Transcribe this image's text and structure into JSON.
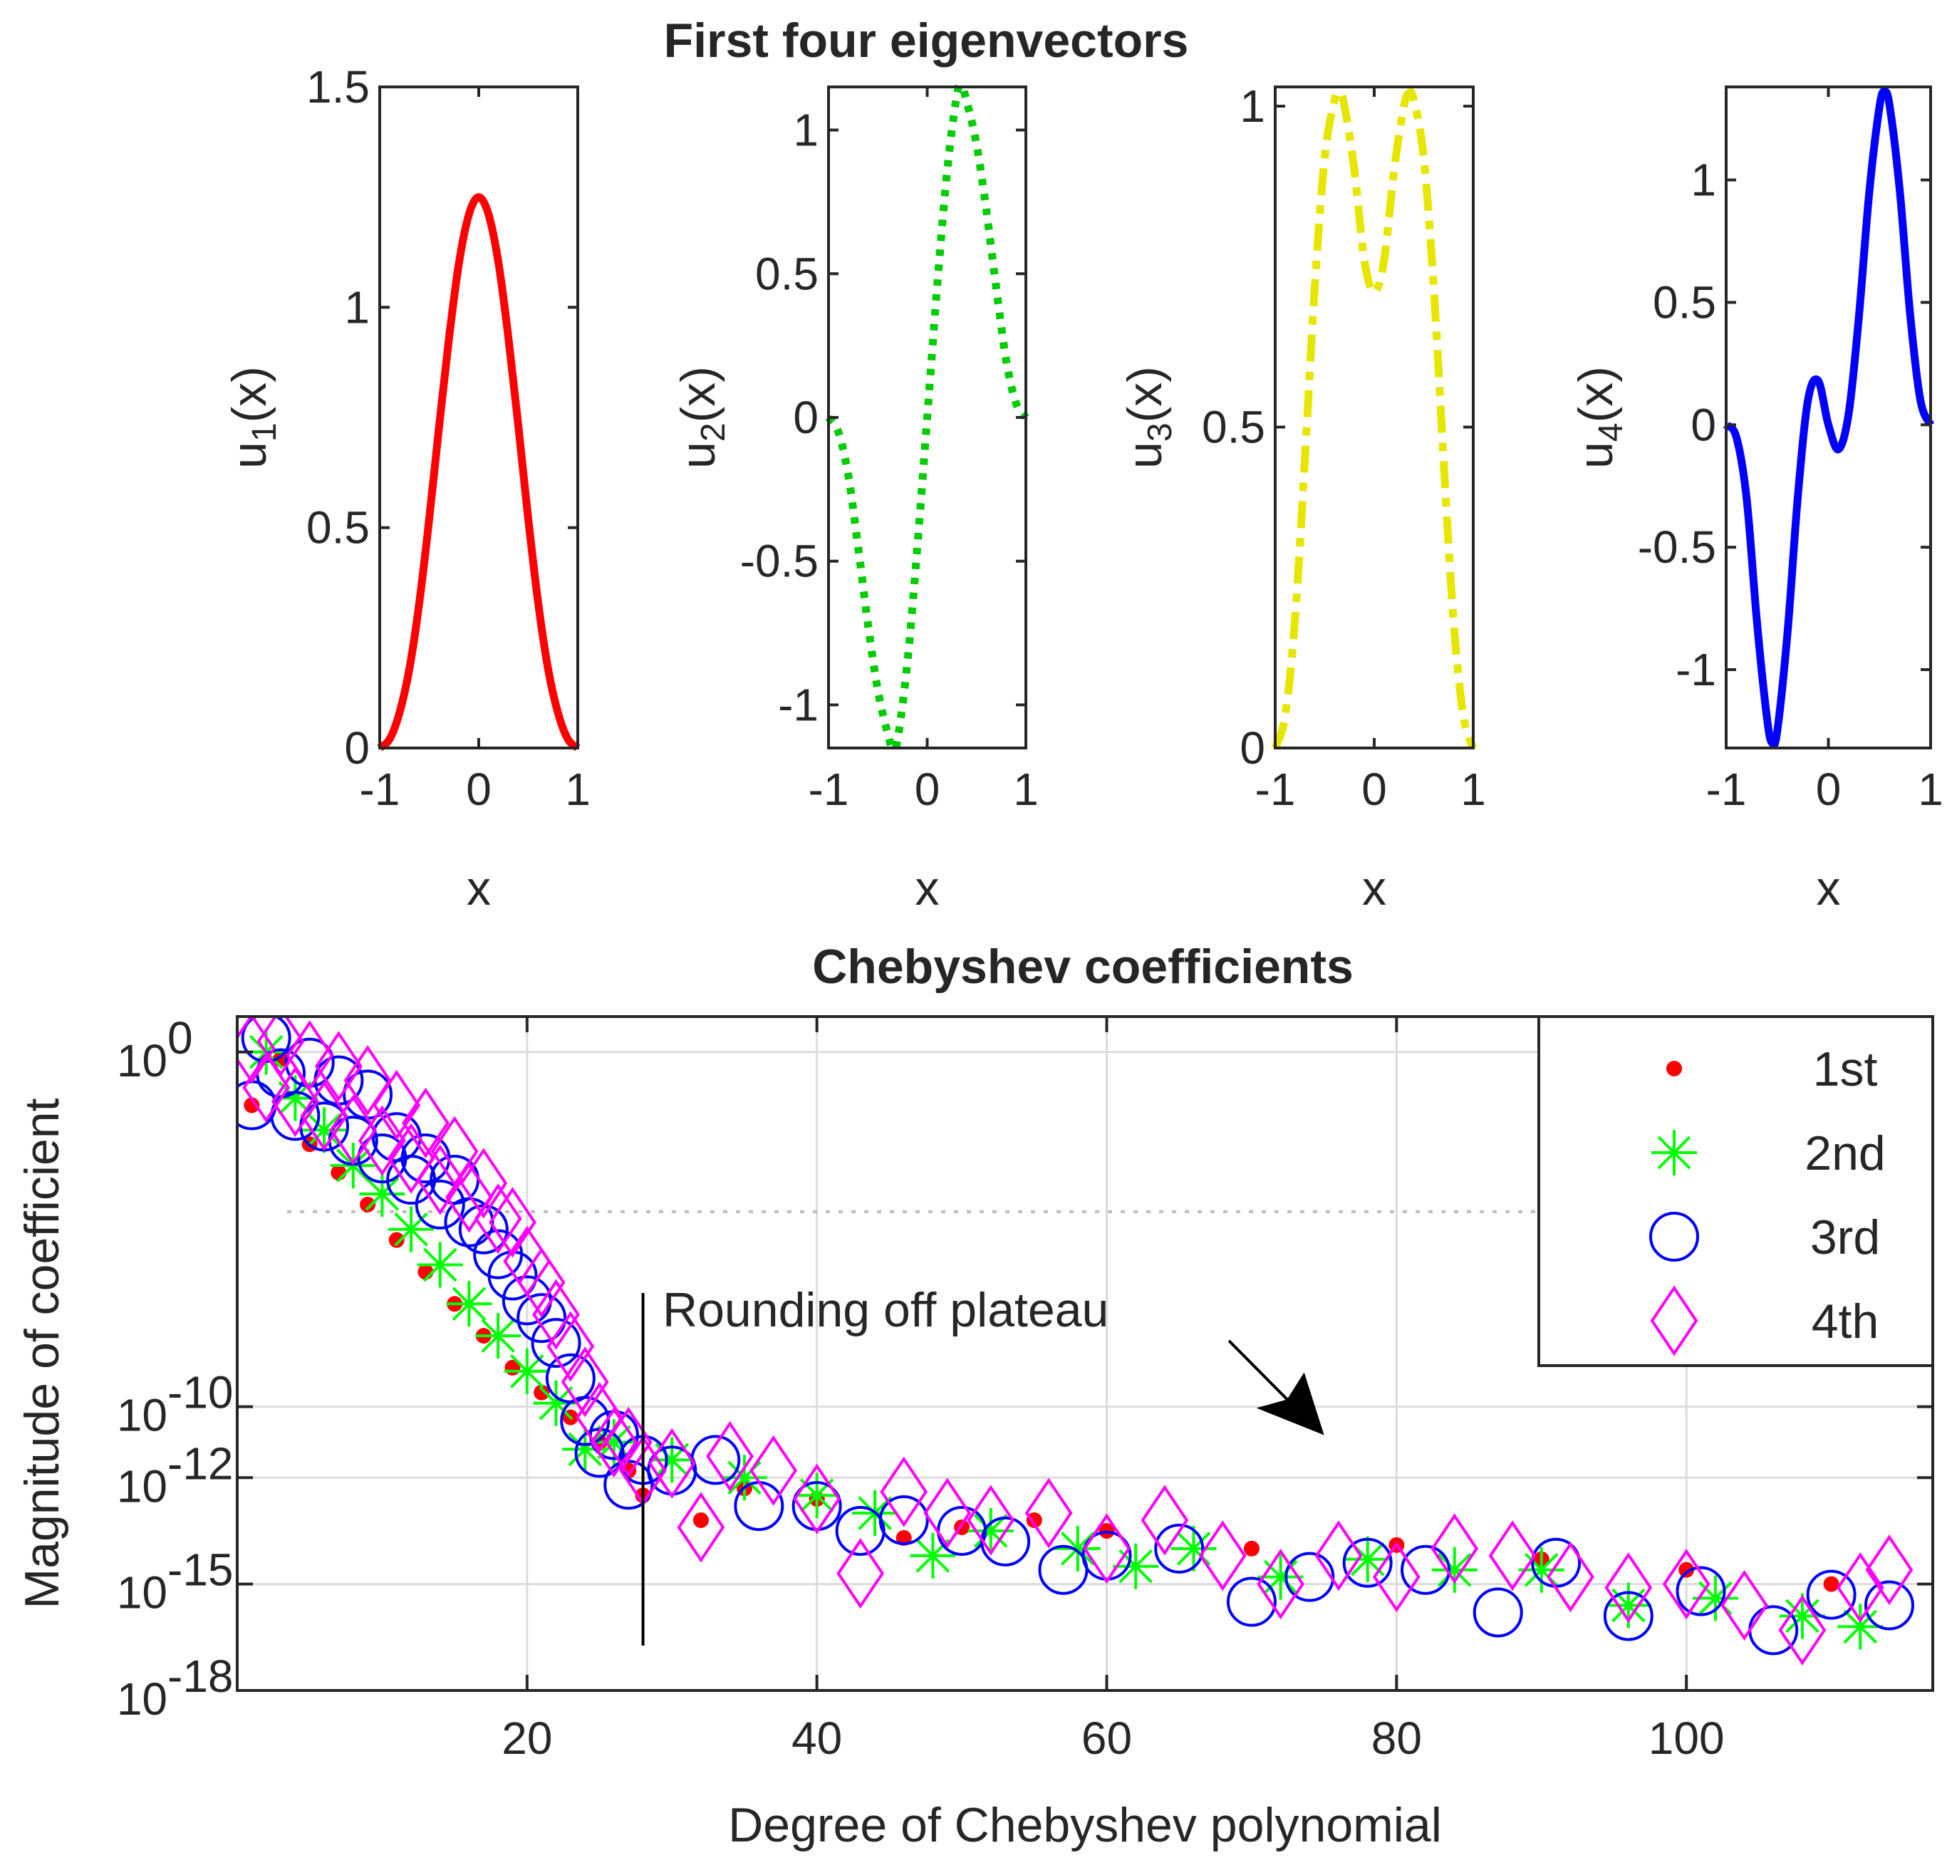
{
  "figure": {
    "top_title": "First four eigenvectors",
    "bottom_title": "Chebyshev coefficients"
  },
  "chart_data": [
    {
      "type": "line",
      "title": "",
      "xlabel": "x",
      "ylabel": "u_1(x)",
      "ylabel_base": "u",
      "ylabel_sub": "1",
      "ylabel_tail": "(x)",
      "xlim": [
        -1,
        1
      ],
      "ylim": [
        0,
        1.5
      ],
      "xticks": [
        -1,
        0,
        1
      ],
      "xtick_labels": [
        "-1",
        "0",
        "1"
      ],
      "yticks": [
        0,
        0.5,
        1,
        1.5
      ],
      "ytick_labels": [
        "0",
        "0.5",
        "1",
        "1.5"
      ],
      "series": [
        {
          "name": "u1",
          "color": "#ff0000",
          "style": "solid",
          "x": [
            -1.0,
            -0.9,
            -0.8,
            -0.7,
            -0.6,
            -0.5,
            -0.4,
            -0.3,
            -0.2,
            -0.1,
            0.0,
            0.1,
            0.2,
            0.3,
            0.4,
            0.5,
            0.6,
            0.7,
            0.8,
            0.9,
            1.0
          ],
          "y": [
            0.0,
            0.02,
            0.08,
            0.18,
            0.33,
            0.52,
            0.73,
            0.93,
            1.1,
            1.21,
            1.25,
            1.21,
            1.1,
            0.93,
            0.73,
            0.52,
            0.33,
            0.18,
            0.08,
            0.02,
            0.0
          ]
        }
      ]
    },
    {
      "type": "line",
      "title": "",
      "xlabel": "x",
      "ylabel": "u_2(x)",
      "ylabel_base": "u",
      "ylabel_sub": "2",
      "ylabel_tail": "(x)",
      "xlim": [
        -1,
        1
      ],
      "ylim": [
        -1.15,
        1.15
      ],
      "xticks": [
        -1,
        0,
        1
      ],
      "xtick_labels": [
        "-1",
        "0",
        "1"
      ],
      "yticks": [
        -1,
        -0.5,
        0,
        0.5,
        1
      ],
      "ytick_labels": [
        "-1",
        "-0.5",
        "0",
        "0.5",
        "1"
      ],
      "series": [
        {
          "name": "u2",
          "color": "#00cc00",
          "style": "dotted",
          "x": [
            -1.0,
            -0.9,
            -0.8,
            -0.7,
            -0.6,
            -0.5,
            -0.4,
            -0.35,
            -0.3,
            -0.2,
            -0.1,
            0.0,
            0.1,
            0.2,
            0.3,
            0.35,
            0.4,
            0.5,
            0.6,
            0.7,
            0.8,
            0.9,
            1.0
          ],
          "y": [
            0.0,
            -0.05,
            -0.2,
            -0.45,
            -0.72,
            -0.95,
            -1.1,
            -1.15,
            -1.12,
            -0.85,
            -0.45,
            0.0,
            0.45,
            0.85,
            1.12,
            1.15,
            1.1,
            0.95,
            0.72,
            0.45,
            0.2,
            0.05,
            0.0
          ]
        }
      ]
    },
    {
      "type": "line",
      "title": "",
      "xlabel": "x",
      "ylabel": "u_3(x)",
      "ylabel_base": "u",
      "ylabel_sub": "3",
      "ylabel_tail": "(x)",
      "xlim": [
        -1,
        1
      ],
      "ylim": [
        0,
        1.03
      ],
      "xticks": [
        -1,
        0,
        1
      ],
      "xtick_labels": [
        "-1",
        "0",
        "1"
      ],
      "yticks": [
        0,
        0.5,
        1
      ],
      "ytick_labels": [
        "0",
        "0.5",
        "1"
      ],
      "series": [
        {
          "name": "u3",
          "color": "#e6e600",
          "style": "dashdot",
          "x": [
            -1.0,
            -0.9,
            -0.8,
            -0.7,
            -0.6,
            -0.5,
            -0.4,
            -0.35,
            -0.3,
            -0.2,
            -0.1,
            0.0,
            0.1,
            0.2,
            0.3,
            0.35,
            0.4,
            0.5,
            0.6,
            0.7,
            0.8,
            0.9,
            1.0
          ],
          "y": [
            0.0,
            0.05,
            0.2,
            0.45,
            0.72,
            0.92,
            1.01,
            1.02,
            1.0,
            0.9,
            0.76,
            0.71,
            0.76,
            0.9,
            1.0,
            1.02,
            1.01,
            0.92,
            0.72,
            0.45,
            0.2,
            0.05,
            0.0
          ]
        }
      ]
    },
    {
      "type": "line",
      "title": "",
      "xlabel": "x",
      "ylabel": "u_4(x)",
      "ylabel_base": "u",
      "ylabel_sub": "4",
      "ylabel_tail": "(x)",
      "xlim": [
        -1,
        1
      ],
      "ylim": [
        -1.32,
        1.38
      ],
      "xticks": [
        -1,
        0,
        1
      ],
      "xtick_labels": [
        "-1",
        "0",
        "1"
      ],
      "yticks": [
        -1,
        -0.5,
        0,
        0.5,
        1
      ],
      "ytick_labels": [
        "-1",
        "-0.5",
        "0",
        "0.5",
        "1"
      ],
      "series": [
        {
          "name": "u4",
          "color": "#0000ff",
          "style": "solid",
          "x": [
            -1.0,
            -0.9,
            -0.8,
            -0.7,
            -0.6,
            -0.55,
            -0.5,
            -0.4,
            -0.3,
            -0.2,
            -0.1,
            0.0,
            0.1,
            0.2,
            0.3,
            0.4,
            0.5,
            0.55,
            0.6,
            0.7,
            0.8,
            0.9,
            1.0
          ],
          "y": [
            0.0,
            -0.05,
            -0.3,
            -0.8,
            -1.2,
            -1.3,
            -1.25,
            -0.85,
            -0.3,
            0.1,
            0.18,
            0.0,
            -0.1,
            0.05,
            0.45,
            0.95,
            1.3,
            1.36,
            1.3,
            0.95,
            0.45,
            0.1,
            0.0
          ]
        }
      ]
    },
    {
      "type": "scatter",
      "title": "Chebyshev coefficients",
      "xlabel": "Degree of Chebyshev polynomial",
      "ylabel": "Magnitude of coefficient",
      "yscale": "log",
      "xlim": [
        0,
        117
      ],
      "ylim_log10": [
        -18,
        1
      ],
      "xticks": [
        20,
        40,
        60,
        80,
        100
      ],
      "xtick_labels": [
        "20",
        "40",
        "60",
        "80",
        "100"
      ],
      "ytick_exps": [
        -18,
        -15,
        -12,
        -10,
        0
      ],
      "ytick_labels": [
        {
          "base": "10",
          "exp": "-18"
        },
        {
          "base": "10",
          "exp": "-15"
        },
        {
          "base": "10",
          "exp": "-12"
        },
        {
          "base": "10",
          "exp": "-10"
        },
        {
          "base": "10",
          "exp": "0"
        }
      ],
      "grid": true,
      "reference_line_log10": -4.5,
      "vertical_marker_x": 28,
      "annotation": {
        "text": "Rounding off plateau",
        "arrow_to_x": 75,
        "arrow_to_log10": -10.8
      },
      "legend_position": "top-right",
      "series": [
        {
          "name": "1st",
          "marker": "dot",
          "color": "#ff0000",
          "x": [
            1,
            3,
            5,
            7,
            9,
            11,
            13,
            15,
            17,
            19,
            21,
            23,
            25,
            27,
            28,
            32,
            35,
            40,
            46,
            50,
            55,
            60,
            70,
            80,
            90,
            100,
            110
          ],
          "y_log10": [
            -1.5,
            -0.2,
            -2.6,
            -3.4,
            -4.3,
            -5.3,
            -6.2,
            -7.1,
            -8.0,
            -8.9,
            -9.6,
            -10.3,
            -11.0,
            -11.8,
            -12.5,
            -13.2,
            -12.3,
            -12.6,
            -13.7,
            -13.4,
            -13.2,
            -13.5,
            -14.0,
            -13.9,
            -14.3,
            -14.6,
            -15.0
          ]
        },
        {
          "name": "2nd",
          "marker": "asterisk",
          "color": "#00ff00",
          "x": [
            2,
            4,
            6,
            8,
            10,
            12,
            14,
            16,
            18,
            20,
            22,
            24,
            26,
            30,
            35,
            40,
            44,
            48,
            52,
            58,
            62,
            66,
            72,
            78,
            84,
            90,
            96,
            102,
            108,
            112
          ],
          "y_log10": [
            0.0,
            -1.3,
            -2.2,
            -3.2,
            -4.0,
            -5.0,
            -6.0,
            -7.1,
            -8.0,
            -9.0,
            -9.9,
            -11.2,
            -11.0,
            -11.5,
            -12.0,
            -12.5,
            -13.0,
            -14.2,
            -13.5,
            -14.0,
            -14.5,
            -14.0,
            -14.8,
            -14.3,
            -14.6,
            -14.6,
            -15.6,
            -15.4,
            -15.9,
            -16.2
          ]
        },
        {
          "name": "3rd",
          "marker": "circle",
          "color": "#0000ff",
          "x": [
            1,
            2,
            3,
            4,
            5,
            6,
            7,
            8,
            9,
            10,
            11,
            12,
            13,
            14,
            15,
            16,
            17,
            18,
            19,
            20,
            21,
            22,
            23,
            24,
            25,
            26,
            27,
            28,
            30,
            33,
            36,
            40,
            43,
            46,
            50,
            53,
            57,
            60,
            65,
            70,
            74,
            78,
            82,
            87,
            91,
            96,
            101,
            106,
            110,
            114
          ],
          "y_log10": [
            -1.5,
            0.4,
            -0.6,
            -1.8,
            -0.3,
            -2.1,
            -0.8,
            -2.5,
            -1.2,
            -3.0,
            -2.4,
            -3.6,
            -3.0,
            -4.3,
            -3.6,
            -4.8,
            -5.0,
            -5.7,
            -6.3,
            -7.0,
            -7.5,
            -8.2,
            -9.2,
            -10.4,
            -11.3,
            -10.8,
            -12.2,
            -11.5,
            -11.8,
            -11.5,
            -12.8,
            -12.8,
            -13.5,
            -13.2,
            -13.5,
            -13.8,
            -14.6,
            -14.2,
            -14.0,
            -15.5,
            -14.8,
            -14.4,
            -14.6,
            -15.8,
            -14.4,
            -15.9,
            -15.2,
            -16.3,
            -15.3,
            -15.6
          ]
        },
        {
          "name": "4th",
          "marker": "diamond",
          "color": "#ff00ff",
          "x": [
            1,
            2,
            3,
            4,
            5,
            6,
            7,
            8,
            9,
            10,
            11,
            12,
            13,
            14,
            15,
            16,
            17,
            18,
            19,
            20,
            21,
            22,
            23,
            24,
            25,
            26,
            27,
            28,
            30,
            32,
            34,
            37,
            40,
            43,
            46,
            49,
            52,
            56,
            60,
            64,
            68,
            72,
            76,
            80,
            84,
            88,
            92,
            96,
            100,
            104,
            108,
            112,
            114
          ],
          "y_log10": [
            0.1,
            -1.0,
            0.3,
            -1.4,
            -0.1,
            -1.8,
            -0.4,
            -2.2,
            -0.8,
            -2.5,
            -1.5,
            -3.0,
            -2.0,
            -3.6,
            -2.8,
            -4.1,
            -3.7,
            -4.7,
            -4.8,
            -5.9,
            -6.5,
            -7.4,
            -8.3,
            -9.3,
            -10.3,
            -11.0,
            -11.0,
            -11.8,
            -11.6,
            -13.4,
            -11.4,
            -11.8,
            -12.6,
            -14.7,
            -12.4,
            -13.0,
            -13.2,
            -13.0,
            -14.0,
            -13.2,
            -14.2,
            -15.0,
            -14.2,
            -14.8,
            -14.0,
            -14.2,
            -14.8,
            -15.1,
            -15.0,
            -15.6,
            -16.3,
            -15.1,
            -14.6
          ]
        }
      ]
    }
  ]
}
